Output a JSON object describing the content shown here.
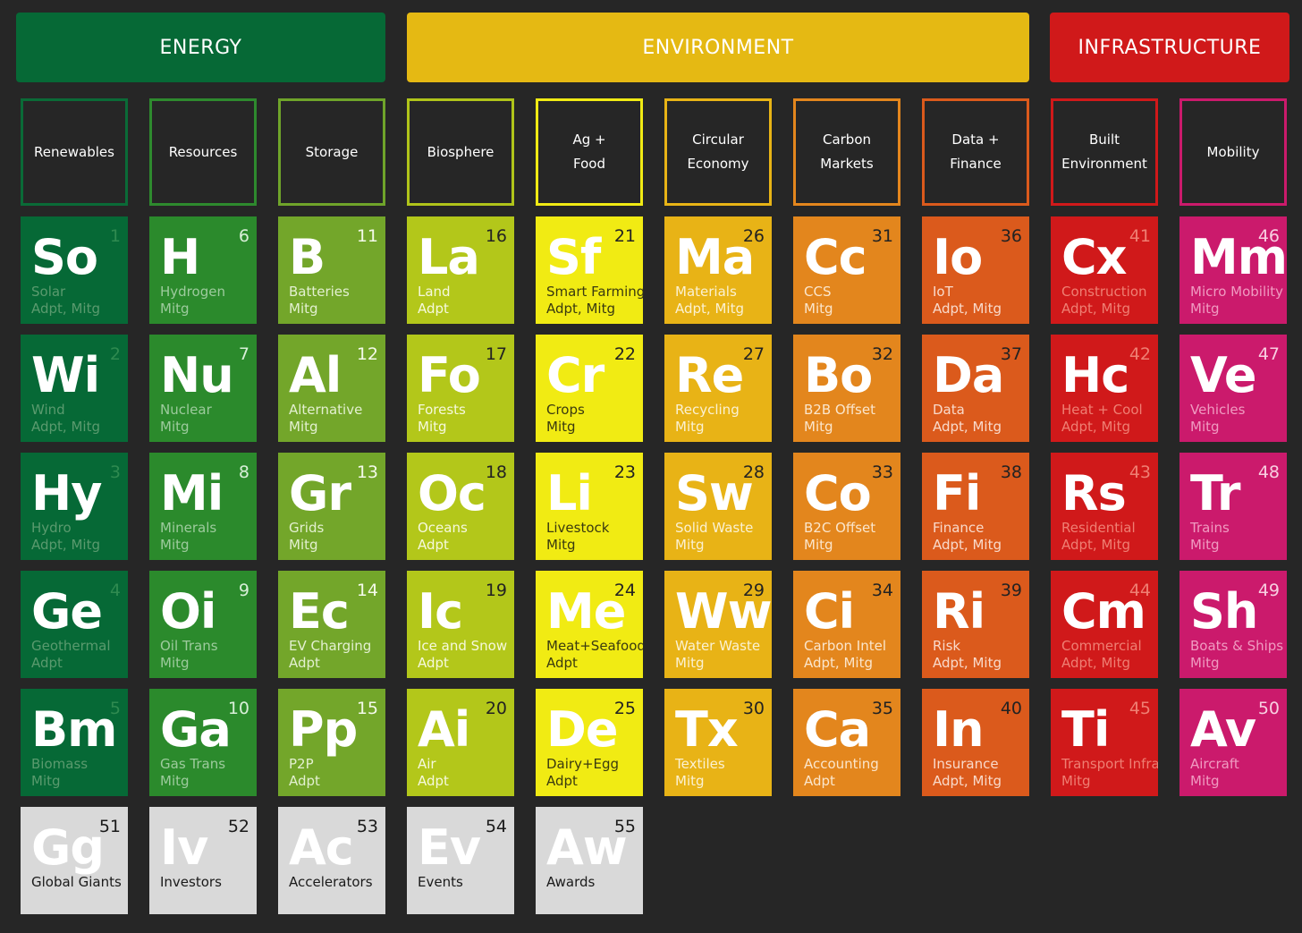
{
  "groups": [
    {
      "label": "ENERGY",
      "color": "#066936"
    },
    {
      "label": "ENVIRONMENT",
      "color": "#e5b913"
    },
    {
      "label": "INFRASTRUCTURE",
      "color": "#d0191a"
    }
  ],
  "categories": [
    {
      "label": "Renewables",
      "border": "#0a6b37"
    },
    {
      "label": "Resources",
      "border": "#2e8a2e"
    },
    {
      "label": "Storage",
      "border": "#6fa42a"
    },
    {
      "label": "Biosphere",
      "border": "#b0c41a"
    },
    {
      "label": "Ag +\nFood",
      "border": "#f0ea14"
    },
    {
      "label": "Circular\nEconomy",
      "border": "#e8b416"
    },
    {
      "label": "Carbon\nMarkets",
      "border": "#e3861d"
    },
    {
      "label": "Data +\nFinance",
      "border": "#db5a1c"
    },
    {
      "label": "Built\nEnvironment",
      "border": "#d0191a"
    },
    {
      "label": "Mobility",
      "border": "#cb1a6c"
    }
  ],
  "columns": [
    {
      "color": "#066936",
      "text": "#5a9a6e",
      "num": "#2f8a50",
      "items": [
        {
          "sym": "So",
          "num": "1",
          "name": "Solar",
          "tag": "Adpt, Mitg"
        },
        {
          "sym": "Wi",
          "num": "2",
          "name": "Wind",
          "tag": "Adpt, Mitg"
        },
        {
          "sym": "Hy",
          "num": "3",
          "name": "Hydro",
          "tag": "Adpt, Mitg"
        },
        {
          "sym": "Ge",
          "num": "4",
          "name": "Geothermal",
          "tag": "Adpt"
        },
        {
          "sym": "Bm",
          "num": "5",
          "name": "Biomass",
          "tag": "Mitg"
        }
      ]
    },
    {
      "color": "#2b8a2c",
      "text": "#9dcb9d",
      "num": "#d8efd8",
      "items": [
        {
          "sym": "H",
          "num": "6",
          "name": "Hydrogen",
          "tag": "Mitg"
        },
        {
          "sym": "Nu",
          "num": "7",
          "name": "Nuclear",
          "tag": "Mitg"
        },
        {
          "sym": "Mi",
          "num": "8",
          "name": "Minerals",
          "tag": "Mitg"
        },
        {
          "sym": "Oi",
          "num": "9",
          "name": "Oil Trans",
          "tag": "Mitg"
        },
        {
          "sym": "Ga",
          "num": "10",
          "name": "Gas Trans",
          "tag": "Mitg"
        }
      ]
    },
    {
      "color": "#73a62a",
      "text": "#e3f0d0",
      "num": "#f4faea",
      "items": [
        {
          "sym": "B",
          "num": "11",
          "name": "Batteries",
          "tag": "Mitg"
        },
        {
          "sym": "Al",
          "num": "12",
          "name": "Alternative",
          "tag": "Mitg"
        },
        {
          "sym": "Gr",
          "num": "13",
          "name": "Grids",
          "tag": "Mitg"
        },
        {
          "sym": "Ec",
          "num": "14",
          "name": "EV Charging",
          "tag": "Adpt"
        },
        {
          "sym": "Pp",
          "num": "15",
          "name": "P2P",
          "tag": "Adpt"
        }
      ]
    },
    {
      "color": "#b3c71a",
      "text": "#f6f9dd",
      "num": "#222222",
      "items": [
        {
          "sym": "La",
          "num": "16",
          "name": "Land",
          "tag": "Adpt"
        },
        {
          "sym": "Fo",
          "num": "17",
          "name": "Forests",
          "tag": "Mitg"
        },
        {
          "sym": "Oc",
          "num": "18",
          "name": "Oceans",
          "tag": "Adpt"
        },
        {
          "sym": "Ic",
          "num": "19",
          "name": "Ice and Snow",
          "tag": "Adpt"
        },
        {
          "sym": "Ai",
          "num": "20",
          "name": "Air",
          "tag": "Adpt"
        }
      ]
    },
    {
      "color": "#f1eb13",
      "text": "#3a3a10",
      "num": "#222222",
      "items": [
        {
          "sym": "Sf",
          "num": "21",
          "name": "Smart Farming",
          "tag": "Adpt, Mitg"
        },
        {
          "sym": "Cr",
          "num": "22",
          "name": "Crops",
          "tag": "Mitg"
        },
        {
          "sym": "Li",
          "num": "23",
          "name": "Livestock",
          "tag": "Mitg"
        },
        {
          "sym": "Me",
          "num": "24",
          "name": "Meat+Seafood",
          "tag": "Adpt"
        },
        {
          "sym": "De",
          "num": "25",
          "name": "Dairy+Egg",
          "tag": "Adpt"
        }
      ]
    },
    {
      "color": "#e8b316",
      "text": "#fbf1d2",
      "num": "#222222",
      "items": [
        {
          "sym": "Ma",
          "num": "26",
          "name": "Materials",
          "tag": "Adpt, Mitg"
        },
        {
          "sym": "Re",
          "num": "27",
          "name": "Recycling",
          "tag": "Mitg"
        },
        {
          "sym": "Sw",
          "num": "28",
          "name": "Solid Waste",
          "tag": "Mitg"
        },
        {
          "sym": "Ww",
          "num": "29",
          "name": "Water Waste",
          "tag": "Mitg"
        },
        {
          "sym": "Tx",
          "num": "30",
          "name": "Textiles",
          "tag": "Mitg"
        }
      ]
    },
    {
      "color": "#e3861d",
      "text": "#fbe6cc",
      "num": "#222222",
      "items": [
        {
          "sym": "Cc",
          "num": "31",
          "name": "CCS",
          "tag": "Mitg"
        },
        {
          "sym": "Bo",
          "num": "32",
          "name": "B2B Offset",
          "tag": "Mitg"
        },
        {
          "sym": "Co",
          "num": "33",
          "name": "B2C Offset",
          "tag": "Mitg"
        },
        {
          "sym": "Ci",
          "num": "34",
          "name": "Carbon Intel",
          "tag": "Adpt, Mitg"
        },
        {
          "sym": "Ca",
          "num": "35",
          "name": "Accounting",
          "tag": "Adpt"
        }
      ]
    },
    {
      "color": "#db5a1c",
      "text": "#f9dacb",
      "num": "#222222",
      "items": [
        {
          "sym": "Io",
          "num": "36",
          "name": "IoT",
          "tag": "Adpt, Mitg"
        },
        {
          "sym": "Da",
          "num": "37",
          "name": "Data",
          "tag": "Adpt, Mitg"
        },
        {
          "sym": "Fi",
          "num": "38",
          "name": "Finance",
          "tag": "Adpt, Mitg"
        },
        {
          "sym": "Ri",
          "num": "39",
          "name": "Risk",
          "tag": "Adpt, Mitg"
        },
        {
          "sym": "In",
          "num": "40",
          "name": "Insurance",
          "tag": "Adpt, Mitg"
        }
      ]
    },
    {
      "color": "#d0191a",
      "text": "#ef7f73",
      "num": "#ef7f73",
      "items": [
        {
          "sym": "Cx",
          "num": "41",
          "name": "Construction",
          "tag": "Adpt, Mitg"
        },
        {
          "sym": "Hc",
          "num": "42",
          "name": "Heat + Cool",
          "tag": "Adpt, Mitg"
        },
        {
          "sym": "Rs",
          "num": "43",
          "name": "Residential",
          "tag": "Adpt, Mitg"
        },
        {
          "sym": "Cm",
          "num": "44",
          "name": "Commercial",
          "tag": "Adpt, Mitg"
        },
        {
          "sym": "Ti",
          "num": "45",
          "name": "Transport Infra",
          "tag": "Mitg"
        }
      ]
    },
    {
      "color": "#cb1a6c",
      "text": "#f09bc1",
      "num": "#f8cfe1",
      "items": [
        {
          "sym": "Mm",
          "num": "46",
          "name": "Micro Mobility",
          "tag": "Mitg"
        },
        {
          "sym": "Ve",
          "num": "47",
          "name": "Vehicles",
          "tag": "Mitg"
        },
        {
          "sym": "Tr",
          "num": "48",
          "name": "Trains",
          "tag": "Mitg"
        },
        {
          "sym": "Sh",
          "num": "49",
          "name": "Boats & Ships",
          "tag": "Mitg"
        },
        {
          "sym": "Av",
          "num": "50",
          "name": "Aircraft",
          "tag": "Mitg"
        }
      ]
    }
  ],
  "extras": {
    "color": "#d9d9d9",
    "items": [
      {
        "sym": "Gg",
        "num": "51",
        "name": "Global Giants"
      },
      {
        "sym": "Iv",
        "num": "52",
        "name": "Investors"
      },
      {
        "sym": "Ac",
        "num": "53",
        "name": "Accelerators"
      },
      {
        "sym": "Ev",
        "num": "54",
        "name": "Events"
      },
      {
        "sym": "Aw",
        "num": "55",
        "name": "Awards"
      }
    ]
  }
}
